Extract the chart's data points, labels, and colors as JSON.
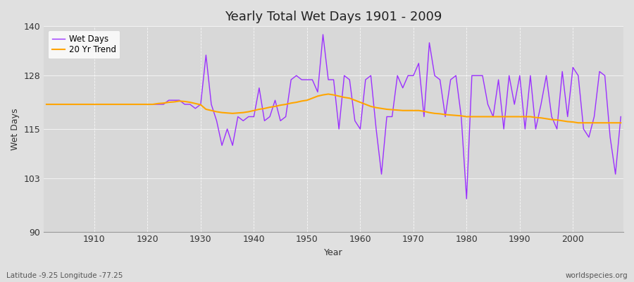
{
  "title": "Yearly Total Wet Days 1901 - 2009",
  "xlabel": "Year",
  "ylabel": "Wet Days",
  "subtitle_left": "Latitude -9.25 Longitude -77.25",
  "subtitle_right": "worldspecies.org",
  "ylim": [
    90,
    140
  ],
  "yticks": [
    90,
    103,
    115,
    128,
    140
  ],
  "line_color": "#9B30FF",
  "trend_color": "#FFA500",
  "fig_bg_color": "#E0E0E0",
  "plot_bg_color": "#D8D8D8",
  "legend_labels": [
    "Wet Days",
    "20 Yr Trend"
  ],
  "years": [
    1901,
    1902,
    1903,
    1904,
    1905,
    1906,
    1907,
    1908,
    1909,
    1910,
    1911,
    1912,
    1913,
    1914,
    1915,
    1916,
    1917,
    1918,
    1919,
    1920,
    1921,
    1922,
    1923,
    1924,
    1925,
    1926,
    1927,
    1928,
    1929,
    1930,
    1931,
    1932,
    1933,
    1934,
    1935,
    1936,
    1937,
    1938,
    1939,
    1940,
    1941,
    1942,
    1943,
    1944,
    1945,
    1946,
    1947,
    1948,
    1949,
    1950,
    1951,
    1952,
    1953,
    1954,
    1955,
    1956,
    1957,
    1958,
    1959,
    1960,
    1961,
    1962,
    1963,
    1964,
    1965,
    1966,
    1967,
    1968,
    1969,
    1970,
    1971,
    1972,
    1973,
    1974,
    1975,
    1976,
    1977,
    1978,
    1979,
    1980,
    1981,
    1982,
    1983,
    1984,
    1985,
    1986,
    1987,
    1988,
    1989,
    1990,
    1991,
    1992,
    1993,
    1994,
    1995,
    1996,
    1997,
    1998,
    1999,
    2000,
    2001,
    2002,
    2003,
    2004,
    2005,
    2006,
    2007,
    2008,
    2009
  ],
  "wet_days": [
    121,
    121,
    121,
    121,
    121,
    121,
    121,
    121,
    121,
    121,
    121,
    121,
    121,
    121,
    121,
    121,
    121,
    121,
    121,
    121,
    121,
    121,
    121,
    122,
    122,
    122,
    121,
    121,
    120,
    121,
    133,
    121,
    117,
    111,
    115,
    111,
    118,
    117,
    118,
    118,
    125,
    117,
    118,
    122,
    117,
    118,
    127,
    128,
    127,
    127,
    127,
    124,
    138,
    127,
    127,
    115,
    128,
    127,
    117,
    115,
    127,
    128,
    115,
    104,
    118,
    118,
    128,
    125,
    128,
    128,
    131,
    118,
    136,
    128,
    127,
    118,
    127,
    128,
    118,
    98,
    128,
    128,
    128,
    121,
    118,
    127,
    115,
    128,
    121,
    128,
    115,
    128,
    115,
    121,
    128,
    118,
    115,
    129,
    118,
    130,
    128,
    115,
    113,
    118,
    129,
    128,
    113,
    104,
    118
  ],
  "trend": [
    121.0,
    121.0,
    121.0,
    121.0,
    121.0,
    121.0,
    121.0,
    121.0,
    121.0,
    121.0,
    121.0,
    121.0,
    121.0,
    121.0,
    121.0,
    121.0,
    121.0,
    121.0,
    121.0,
    121.0,
    121.0,
    121.2,
    121.3,
    121.5,
    121.6,
    121.8,
    121.7,
    121.5,
    121.2,
    120.9,
    119.8,
    119.5,
    119.2,
    119.0,
    118.9,
    118.8,
    118.9,
    119.0,
    119.2,
    119.5,
    119.8,
    120.0,
    120.3,
    120.5,
    120.8,
    121.0,
    121.3,
    121.5,
    121.8,
    122.0,
    122.5,
    123.0,
    123.3,
    123.5,
    123.3,
    123.0,
    122.7,
    122.5,
    122.0,
    121.5,
    121.0,
    120.5,
    120.2,
    120.0,
    119.8,
    119.7,
    119.6,
    119.5,
    119.5,
    119.5,
    119.5,
    119.3,
    119.0,
    118.8,
    118.7,
    118.5,
    118.4,
    118.3,
    118.2,
    118.0,
    118.0,
    118.0,
    118.0,
    118.0,
    118.0,
    118.0,
    118.0,
    118.0,
    118.0,
    118.0,
    118.0,
    118.0,
    117.8,
    117.7,
    117.5,
    117.3,
    117.2,
    117.0,
    116.8,
    116.7,
    116.5,
    116.5,
    116.5,
    116.5,
    116.5,
    116.5,
    116.5,
    116.5,
    116.5
  ]
}
